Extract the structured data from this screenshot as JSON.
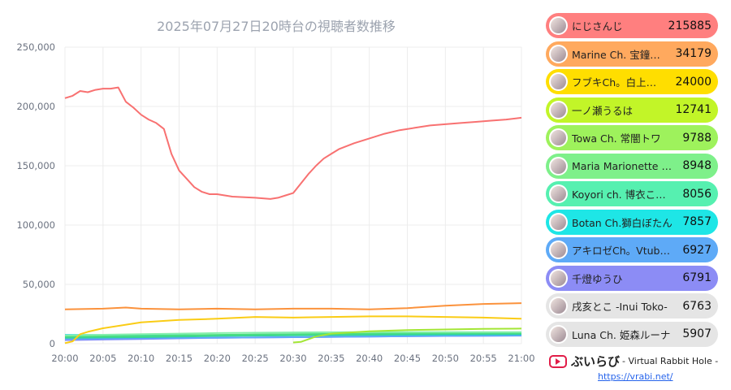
{
  "chart_data": {
    "type": "line",
    "title": "2025年07月27日20時台の視聴者数推移",
    "xlabel": "",
    "ylabel": "",
    "ylim": [
      0,
      250000
    ],
    "xlim": [
      "20:00",
      "21:00"
    ],
    "x_ticks": [
      "20:00",
      "20:05",
      "20:10",
      "20:15",
      "20:20",
      "20:25",
      "20:30",
      "20:35",
      "20:40",
      "20:45",
      "20:50",
      "20:55",
      "21:00"
    ],
    "y_ticks": [
      "0",
      "50,000",
      "100,000",
      "150,000",
      "200,000",
      "250,000"
    ],
    "grid": true,
    "series": [
      {
        "name": "にじさんじ",
        "color": "#f87171",
        "x": [
          "20:00",
          "20:01",
          "20:02",
          "20:03",
          "20:04",
          "20:05",
          "20:06",
          "20:07",
          "20:08",
          "20:09",
          "20:10",
          "20:11",
          "20:12",
          "20:13",
          "20:14",
          "20:15",
          "20:16",
          "20:17",
          "20:18",
          "20:19",
          "20:20",
          "20:22",
          "20:25",
          "20:27",
          "20:28",
          "20:29",
          "20:30",
          "20:31",
          "20:32",
          "20:33",
          "20:34",
          "20:35",
          "20:36",
          "20:38",
          "20:40",
          "20:42",
          "20:44",
          "20:46",
          "20:48",
          "20:50",
          "20:52",
          "20:54",
          "20:56",
          "20:58",
          "21:00"
        ],
        "y": [
          207000,
          209000,
          213000,
          212000,
          214000,
          215000,
          215000,
          216000,
          204000,
          199000,
          193000,
          189000,
          186000,
          181000,
          160000,
          146000,
          139000,
          132000,
          128000,
          126000,
          126000,
          124000,
          123000,
          122000,
          123000,
          125000,
          127000,
          135000,
          143000,
          150000,
          156000,
          160000,
          164000,
          169000,
          173000,
          177000,
          180000,
          182000,
          184000,
          185000,
          186000,
          187000,
          188000,
          189000,
          190500
        ]
      },
      {
        "name": "Marine Ch. 宝鐘マリン",
        "color": "#fb923c",
        "x": [
          "20:00",
          "20:05",
          "20:08",
          "20:10",
          "20:15",
          "20:20",
          "20:25",
          "20:30",
          "20:35",
          "20:40",
          "20:45",
          "20:50",
          "20:55",
          "21:00"
        ],
        "y": [
          29000,
          29500,
          30500,
          29500,
          29000,
          29500,
          29000,
          29500,
          29500,
          29000,
          30000,
          32000,
          33500,
          34179
        ]
      },
      {
        "name": "フブキCh。白上フブキ",
        "color": "#facc15",
        "x": [
          "20:00",
          "20:01",
          "20:02",
          "20:03",
          "20:05",
          "20:10",
          "20:15",
          "20:20",
          "20:25",
          "20:30",
          "20:35",
          "20:40",
          "20:45",
          "20:50",
          "20:55",
          "21:00"
        ],
        "y": [
          500,
          2000,
          8000,
          10000,
          13000,
          18000,
          20000,
          21000,
          22500,
          22000,
          22500,
          23000,
          23000,
          22500,
          22000,
          21000
        ]
      },
      {
        "name": "一ノ瀬うるは",
        "color": "#a3e635",
        "x": [
          "20:30",
          "20:31",
          "20:33",
          "20:35",
          "20:40",
          "20:45",
          "20:50",
          "20:55",
          "21:00"
        ],
        "y": [
          1000,
          1500,
          6000,
          8500,
          10500,
          11500,
          12000,
          12500,
          12741
        ]
      },
      {
        "name": "Towa Ch. 常闇トワ",
        "color": "#86efac",
        "x": [
          "20:00",
          "20:10",
          "20:20",
          "20:30",
          "20:40",
          "20:50",
          "21:00"
        ],
        "y": [
          7000,
          8000,
          9000,
          9500,
          9800,
          9700,
          9788
        ]
      },
      {
        "name": "Maria Marionette 【にじさんじ】",
        "color": "#4ade80",
        "x": [
          "20:00",
          "20:10",
          "20:20",
          "20:30",
          "20:40",
          "20:50",
          "21:00"
        ],
        "y": [
          6000,
          6500,
          7500,
          8000,
          8500,
          8900,
          8948
        ]
      },
      {
        "name": "Koyori ch. 博衣こより",
        "color": "#34d399",
        "x": [
          "20:00",
          "20:10",
          "20:20",
          "20:30",
          "20:40",
          "20:50",
          "21:00"
        ],
        "y": [
          5000,
          5500,
          6500,
          7000,
          7500,
          7900,
          8056
        ]
      },
      {
        "name": "Botan Ch.獅白ぼたん",
        "color": "#22d3ee",
        "x": [
          "20:00",
          "20:10",
          "20:20",
          "20:30",
          "20:40",
          "20:50",
          "21:00"
        ],
        "y": [
          7500,
          7200,
          7000,
          7100,
          7300,
          7600,
          7857
        ]
      },
      {
        "name": "アキロゼCh。Vtuber/ホロライブ所属",
        "color": "#60a5fa",
        "x": [
          "20:00",
          "20:10",
          "20:20",
          "20:30",
          "20:40",
          "20:50",
          "21:00"
        ],
        "y": [
          4000,
          4500,
          5000,
          5500,
          6000,
          6500,
          6927
        ]
      },
      {
        "name": "千燈ゆうひ",
        "color": "#818cf8",
        "x": [
          "20:00",
          "20:10",
          "20:20",
          "20:30",
          "20:40",
          "20:50",
          "21:00"
        ],
        "y": [
          3000,
          4000,
          5000,
          5500,
          6000,
          6500,
          6791
        ]
      }
    ]
  },
  "ranking": [
    {
      "name": "にじさんじ",
      "value": "215885",
      "color": "#ff7f7f"
    },
    {
      "name": "Marine Ch. 宝鐘…",
      "value": "34179",
      "color": "#ffa95e"
    },
    {
      "name": "フブキCh。白上…",
      "value": "24000",
      "color": "#ffde00"
    },
    {
      "name": "一ノ瀬うるは",
      "value": "12741",
      "color": "#c2f528"
    },
    {
      "name": "Towa Ch. 常闇トワ",
      "value": "9788",
      "color": "#9ef25c"
    },
    {
      "name": "Maria Marionette …",
      "value": "8948",
      "color": "#7ef08a"
    },
    {
      "name": "Koyori ch. 博衣こ…",
      "value": "8056",
      "color": "#56f0b0"
    },
    {
      "name": "Botan Ch.獅白ぼたん",
      "value": "7857",
      "color": "#1ee6e6"
    },
    {
      "name": "アキロゼCh。Vtub…",
      "value": "6927",
      "color": "#5eaaf7"
    },
    {
      "name": "千燈ゆうひ",
      "value": "6791",
      "color": "#8c8cf5"
    },
    {
      "name": "戌亥とこ -Inui Toko-",
      "value": "6763",
      "color": "#e5e5e5"
    },
    {
      "name": "Luna Ch. 姫森ルーナ",
      "value": "5907",
      "color": "#e5e5e5"
    }
  ],
  "footer": {
    "brand": "ぶいらび",
    "subtitle": "- Virtual Rabbit Hole -",
    "url": "https://vrabi.net/"
  }
}
